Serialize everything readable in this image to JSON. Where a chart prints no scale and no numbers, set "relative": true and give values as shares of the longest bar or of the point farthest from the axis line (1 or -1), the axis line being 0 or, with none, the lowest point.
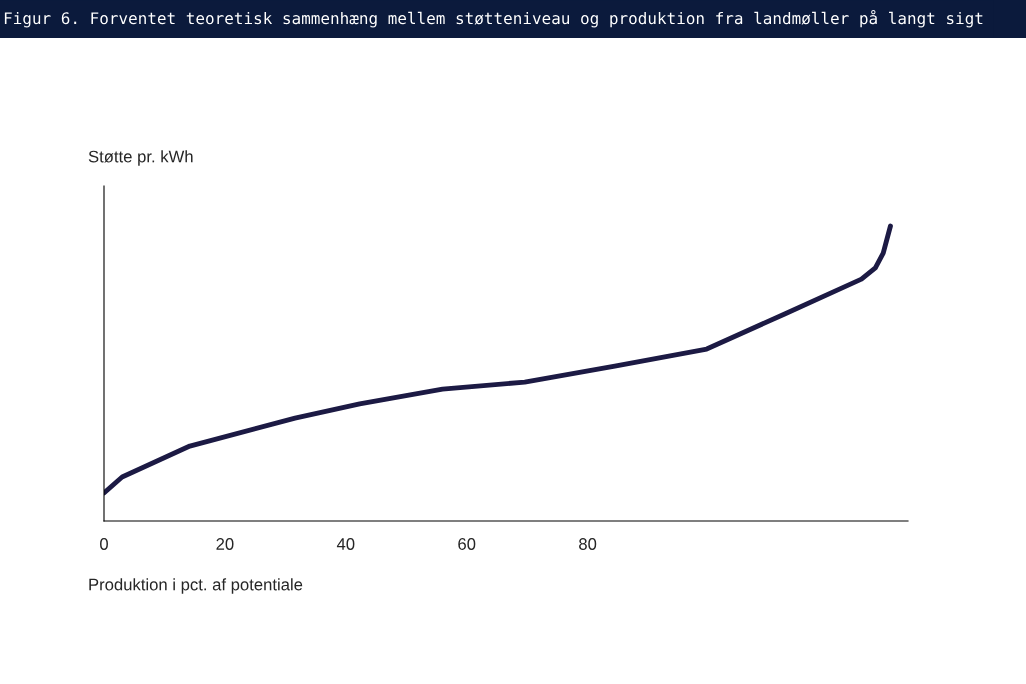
{
  "chart_data": {
    "type": "line",
    "title": "Figur 6. Forventet teoretisk sammenhæng mellem støtteniveau og produktion fra landmøller på langt sigt",
    "ylabel": "Støtte pr. kWh",
    "xlabel": "Produktion i pct. af potentiale",
    "relative": true,
    "xlim": [
      0,
      133
    ],
    "xticks": [
      0,
      20,
      40,
      60,
      80
    ],
    "series": [
      {
        "color": "#1c1a44",
        "x": [
          0,
          3.0,
          14.2,
          31.6,
          42.3,
          56.0,
          69.6,
          84.5,
          99.7,
          112.6,
          125.3,
          127.6,
          128.9,
          130.1
        ],
        "values": [
          0.095,
          0.149,
          0.254,
          0.349,
          0.397,
          0.447,
          0.471,
          0.525,
          0.583,
          0.702,
          0.82,
          0.858,
          0.908,
          1.0
        ]
      }
    ],
    "marker": "none",
    "line_style": "solid"
  }
}
